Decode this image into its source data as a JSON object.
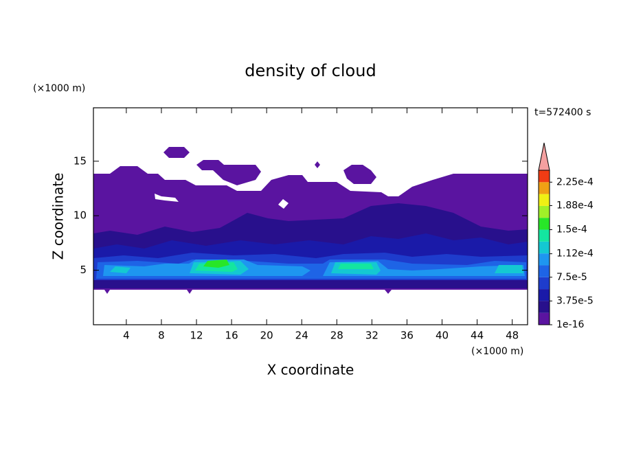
{
  "chart_data": {
    "type": "contour",
    "title": "density of cloud",
    "x_label": "X coordinate",
    "y_label": "Z coordinate",
    "x_unit": "(×1000 m)",
    "y_unit": "(×1000 m)",
    "annotation": "t=572400 s",
    "xlim": [
      0.25,
      49.75
    ],
    "ylim": [
      0,
      19.9
    ],
    "xticks": [
      4,
      8,
      12,
      16,
      20,
      24,
      28,
      32,
      36,
      40,
      44,
      48
    ],
    "yticks": [
      5,
      10,
      15
    ],
    "colorbar": {
      "lim": [
        1e-16,
        0.00024375
      ],
      "ticks": [
        {
          "value": 1e-16,
          "label": "1e-16"
        },
        {
          "value": 3.75e-05,
          "label": "3.75e-5"
        },
        {
          "value": 7.5e-05,
          "label": "7.5e-5"
        },
        {
          "value": 0.000112,
          "label": "1.12e-4"
        },
        {
          "value": 0.00015,
          "label": "1.5e-4"
        },
        {
          "value": 0.000188,
          "label": "1.88e-4"
        },
        {
          "value": 0.000225,
          "label": "2.25e-4"
        }
      ],
      "colors": [
        "#5a14a0",
        "#28108c",
        "#1a1aa8",
        "#1e3ccc",
        "#1e64e6",
        "#1e96f0",
        "#14c8d2",
        "#14e6a0",
        "#28e628",
        "#a0f028",
        "#f0f014",
        "#f0a014",
        "#f03c14"
      ],
      "extend_color": "#f4a0a0"
    }
  }
}
